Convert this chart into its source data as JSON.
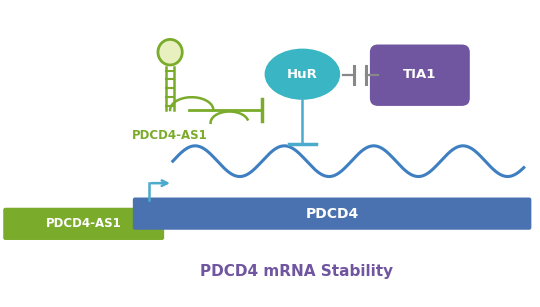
{
  "bg_color": "#ffffff",
  "green_color": "#7aab2a",
  "blue_bar_color": "#4a72b0",
  "blue_wave_color": "#3d7fc1",
  "teal_color": "#3ab5c3",
  "purple_color": "#7055a0",
  "light_blue_line": "#4aabcc",
  "gray_color": "#888888",
  "loop_fill": "#e8f0c0",
  "pdcd4_as1_label": "PDCD4-AS1",
  "pdcd4_label": "PDCD4",
  "hur_label": "HuR",
  "tia1_label": "TIA1",
  "stability_label": "PDCD4 mRNA Stability",
  "xlim": [
    0,
    10
  ],
  "ylim": [
    0,
    6
  ]
}
